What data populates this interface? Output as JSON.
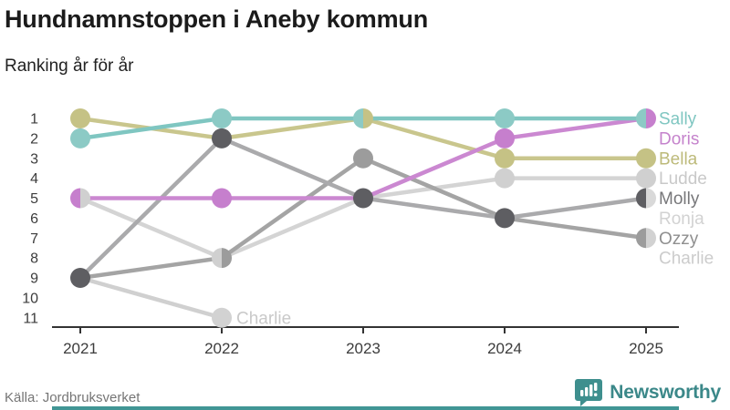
{
  "header": {
    "title": "Hundnamnstoppen i Aneby kommun",
    "subtitle": "Ranking år för år"
  },
  "footer": {
    "source": "Källa: Jordbruksverket",
    "brand": "Newsworthy",
    "brand_color": "#3b8889"
  },
  "accent_color": "#419695",
  "chart_data": {
    "type": "line",
    "variant": "bump-ranking-chart",
    "title": "Hundnamnstoppen i Aneby kommun",
    "subtitle": "Ranking år för år",
    "x_categories": [
      "2021",
      "2022",
      "2023",
      "2024",
      "2025"
    ],
    "y_ticks": [
      "1",
      "2",
      "3",
      "4",
      "5",
      "6",
      "7",
      "8",
      "9",
      "10",
      "11"
    ],
    "y_inverted": true,
    "ylim": [
      1,
      11
    ],
    "grid": false,
    "legend_position": "right-of-last-point",
    "axis_color": "#333333",
    "tick_label_color": "#3c3c3c",
    "series": [
      {
        "name": "Sally",
        "values": [
          2,
          1,
          1,
          1,
          1
        ],
        "line_color": "#7fc6c1",
        "dot_color": "#8ccac5",
        "label_color": "#7fc6c1"
      },
      {
        "name": "Doris",
        "values": [
          5,
          5,
          5,
          2,
          1
        ],
        "line_color": "#cb88d1",
        "dot_color": "#c67fcd",
        "label_color": "#c583cc"
      },
      {
        "name": "Bella",
        "values": [
          1,
          2,
          1,
          3,
          3
        ],
        "line_color": "#c9c68d",
        "dot_color": "#c5c285",
        "label_color": "#bdba7a"
      },
      {
        "name": "Ludde",
        "values": [
          5,
          8,
          5,
          4,
          4
        ],
        "line_color": "#d4d4d4",
        "dot_color": "#d0d0d0",
        "label_color": "#c9c9c9"
      },
      {
        "name": "Molly",
        "values": [
          9,
          2,
          5,
          6,
          5
        ],
        "line_color": "#aaaaac",
        "dot_color": "#5e5e62",
        "label_color": "#77777a"
      },
      {
        "name": "Ronja",
        "values": [
          null,
          null,
          null,
          null,
          5
        ],
        "line_color": "#dcdcdc",
        "dot_color": "#d9d9d9",
        "label_color": "#d2d2d2"
      },
      {
        "name": "Ozzy",
        "values": [
          9,
          8,
          3,
          6,
          7
        ],
        "line_color": "#a4a4a4",
        "dot_color": "#9c9c9c",
        "label_color": "#8f8f8f"
      },
      {
        "name": "Charlie",
        "values": [
          9,
          11,
          null,
          null,
          7
        ],
        "line_color": "#d0d0d0",
        "dot_color": "#d2d2d2",
        "label_color": "#cccccc"
      }
    ],
    "dots": [
      {
        "year": "2021",
        "rank": 1,
        "series": [
          "Bella"
        ]
      },
      {
        "year": "2021",
        "rank": 2,
        "series": [
          "Sally"
        ]
      },
      {
        "year": "2021",
        "rank": 5,
        "series": [
          "Doris",
          "Ludde"
        ]
      },
      {
        "year": "2021",
        "rank": 9,
        "series": [
          "Molly"
        ]
      },
      {
        "year": "2022",
        "rank": 1,
        "series": [
          "Sally"
        ]
      },
      {
        "year": "2022",
        "rank": 2,
        "series": [
          "Molly"
        ]
      },
      {
        "year": "2022",
        "rank": 5,
        "series": [
          "Doris"
        ]
      },
      {
        "year": "2022",
        "rank": 8,
        "series": [
          "Ludde",
          "Ozzy"
        ]
      },
      {
        "year": "2022",
        "rank": 11,
        "series": [
          "Charlie"
        ],
        "annotation": "Charlie"
      },
      {
        "year": "2023",
        "rank": 1,
        "series": [
          "Sally",
          "Bella"
        ]
      },
      {
        "year": "2023",
        "rank": 3,
        "series": [
          "Ozzy"
        ]
      },
      {
        "year": "2023",
        "rank": 5,
        "series": [
          "Molly"
        ]
      },
      {
        "year": "2024",
        "rank": 1,
        "series": [
          "Sally"
        ]
      },
      {
        "year": "2024",
        "rank": 2,
        "series": [
          "Doris"
        ]
      },
      {
        "year": "2024",
        "rank": 3,
        "series": [
          "Bella"
        ]
      },
      {
        "year": "2024",
        "rank": 4,
        "series": [
          "Ludde"
        ]
      },
      {
        "year": "2024",
        "rank": 6,
        "series": [
          "Molly"
        ]
      },
      {
        "year": "2025",
        "rank": 1,
        "series": [
          "Sally",
          "Doris"
        ]
      },
      {
        "year": "2025",
        "rank": 3,
        "series": [
          "Bella"
        ]
      },
      {
        "year": "2025",
        "rank": 4,
        "series": [
          "Ludde"
        ]
      },
      {
        "year": "2025",
        "rank": 5,
        "series": [
          "Molly",
          "Ronja"
        ]
      },
      {
        "year": "2025",
        "rank": 7,
        "series": [
          "Ozzy",
          "Charlie"
        ]
      }
    ],
    "end_labels": [
      "Sally",
      "Doris",
      "Bella",
      "Ludde",
      "Molly",
      "Ronja",
      "Ozzy",
      "Charlie"
    ],
    "annotation_color": "#c9c9c9"
  }
}
